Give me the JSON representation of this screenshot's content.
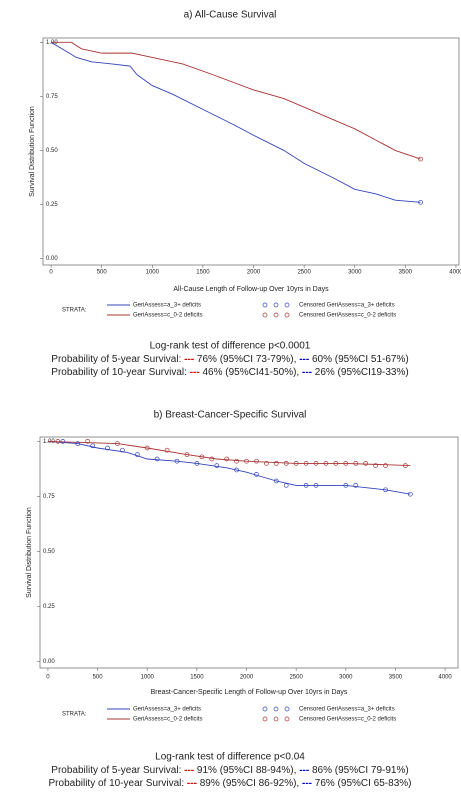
{
  "chart_data": [
    {
      "type": "line",
      "title": "a) All-Cause Survival",
      "x_label": "All-Cause Length of Follow-up Over 10yrs in Days",
      "y_label": "Survival Distribution Function",
      "xlim": [
        -80,
        4030
      ],
      "xticks": [
        0,
        500,
        1000,
        1500,
        2000,
        2500,
        3000,
        3500,
        4000
      ],
      "ylim": [
        -0.03,
        1.02
      ],
      "yticks": [
        {
          "value": 0,
          "label": "0.00"
        },
        {
          "value": 0.25,
          "label": "0.25"
        },
        {
          "value": 0.5,
          "label": "0.50"
        },
        {
          "value": 0.75,
          "label": "0.75"
        },
        {
          "value": 1,
          "label": "1.00"
        }
      ],
      "legend_title": "STRATA:",
      "series": [
        {
          "name": "GeriAssess=a_3+ deficits",
          "color": "#3344bb",
          "x": [
            0,
            180,
            250,
            400,
            600,
            780,
            850,
            1000,
            1200,
            1500,
            1800,
            2000,
            2300,
            2500,
            2800,
            3000,
            3200,
            3400,
            3650
          ],
          "values": [
            1,
            0.95,
            0.93,
            0.91,
            0.9,
            0.89,
            0.85,
            0.8,
            0.76,
            0.69,
            0.62,
            0.57,
            0.5,
            0.44,
            0.37,
            0.32,
            0.3,
            0.27,
            0.26
          ]
        },
        {
          "name": "GeriAssess=c_0-2 deficits",
          "color": "#aa3333",
          "x": [
            0,
            200,
            300,
            500,
            800,
            1000,
            1300,
            1600,
            2000,
            2300,
            2500,
            2800,
            3000,
            3200,
            3400,
            3650
          ],
          "values": [
            1,
            1,
            0.97,
            0.95,
            0.95,
            0.93,
            0.9,
            0.85,
            0.78,
            0.74,
            0.7,
            0.64,
            0.6,
            0.55,
            0.5,
            0.46
          ]
        },
        {
          "type": "scatter",
          "name": "Censored GeriAssess=a_3+ deficits",
          "color": "#3344bb",
          "x": [
            3650
          ],
          "values": [
            0.26
          ]
        },
        {
          "type": "scatter",
          "name": "Censored GeriAssess=c_0-2 deficits",
          "color": "#aa3333",
          "x": [
            3650
          ],
          "values": [
            0.46
          ]
        }
      ],
      "stats": {
        "test": "Log-rank test of difference p<0.0001",
        "rows": [
          {
            "label": "Probability of 5-year Survival:",
            "items": [
              {
                "dash": "---",
                "color": "#dd0000",
                "text": "76% (95%CI 73-79%),"
              },
              {
                "dash": "---",
                "color": "#0000cc",
                "text": "60% (95%CI 51-67%)"
              }
            ]
          },
          {
            "label": "Probability of 10-year Survival:",
            "items": [
              {
                "dash": "---",
                "color": "#dd0000",
                "text": "46% (95%CI41-50%),"
              },
              {
                "dash": "---",
                "color": "#0000cc",
                "text": "26% (95%CI19-33%)"
              }
            ]
          }
        ]
      }
    },
    {
      "type": "line",
      "title": "b) Breast-Cancer-Specific Survival",
      "x_label": "Breast-Cancer-Specific Length of Follow-up Over 10yrs in Days",
      "y_label": "Survival Distribution Function",
      "xlim": [
        -80,
        4130
      ],
      "xticks": [
        0,
        500,
        1000,
        1500,
        2000,
        2500,
        3000,
        3500,
        4000
      ],
      "ylim": [
        -0.03,
        1.02
      ],
      "yticks": [
        {
          "value": 0,
          "label": "0.00"
        },
        {
          "value": 0.25,
          "label": "0.25"
        },
        {
          "value": 0.5,
          "label": "0.50"
        },
        {
          "value": 0.75,
          "label": "0.75"
        },
        {
          "value": 1,
          "label": "1.00"
        }
      ],
      "legend_title": "STRATA:",
      "series": [
        {
          "name": "GeriAssess=a_3+ deficits",
          "color": "#3344bb",
          "x": [
            0,
            300,
            500,
            800,
            1000,
            1300,
            1500,
            1800,
            2000,
            2300,
            2500,
            3000,
            3400,
            3650
          ],
          "values": [
            1,
            0.99,
            0.97,
            0.95,
            0.92,
            0.91,
            0.9,
            0.88,
            0.86,
            0.82,
            0.8,
            0.8,
            0.78,
            0.76
          ]
        },
        {
          "name": "GeriAssess=c_0-2 deficits",
          "color": "#aa3333",
          "x": [
            0,
            700,
            1000,
            1400,
            1700,
            2000,
            2500,
            3000,
            3650
          ],
          "values": [
            1,
            0.99,
            0.97,
            0.94,
            0.92,
            0.91,
            0.9,
            0.9,
            0.89
          ]
        },
        {
          "type": "scatter",
          "name": "Censored GeriAssess=a_3+ deficits",
          "color": "#3344bb",
          "x": [
            150,
            300,
            450,
            600,
            750,
            900,
            1100,
            1300,
            1500,
            1700,
            1900,
            2100,
            2300,
            2400,
            2600,
            2700,
            3000,
            3100,
            3400,
            3650
          ],
          "values": [
            1,
            0.99,
            0.98,
            0.97,
            0.96,
            0.94,
            0.92,
            0.91,
            0.9,
            0.89,
            0.87,
            0.85,
            0.82,
            0.8,
            0.8,
            0.8,
            0.8,
            0.8,
            0.78,
            0.76
          ]
        },
        {
          "type": "scatter",
          "name": "Censored GeriAssess=c_0-2 deficits",
          "color": "#aa3333",
          "x": [
            100,
            400,
            700,
            1000,
            1200,
            1400,
            1550,
            1650,
            1800,
            1900,
            2000,
            2100,
            2200,
            2300,
            2400,
            2500,
            2600,
            2700,
            2800,
            2900,
            3000,
            3100,
            3200,
            3300,
            3400,
            3600
          ],
          "values": [
            1,
            1,
            0.99,
            0.97,
            0.96,
            0.94,
            0.93,
            0.92,
            0.92,
            0.91,
            0.91,
            0.91,
            0.9,
            0.9,
            0.9,
            0.9,
            0.9,
            0.9,
            0.9,
            0.9,
            0.9,
            0.9,
            0.9,
            0.89,
            0.89,
            0.89
          ]
        }
      ],
      "stats": {
        "test": "Log-rank test of difference p<0.04",
        "rows": [
          {
            "label": "Probability of 5-year Survival:",
            "items": [
              {
                "dash": "---",
                "color": "#dd0000",
                "text": "91% (95%CI 88-94%),"
              },
              {
                "dash": "---",
                "color": "#0000cc",
                "text": "86% (95%CI 79-91%)"
              }
            ]
          },
          {
            "label": "Probability of 10-year Survival:",
            "items": [
              {
                "dash": "---",
                "color": "#dd0000",
                "text": "89% (95%CI 86-92%),"
              },
              {
                "dash": "---",
                "color": "#0000cc",
                "text": "76% (95%CI 65-83%)"
              }
            ]
          }
        ]
      }
    }
  ]
}
